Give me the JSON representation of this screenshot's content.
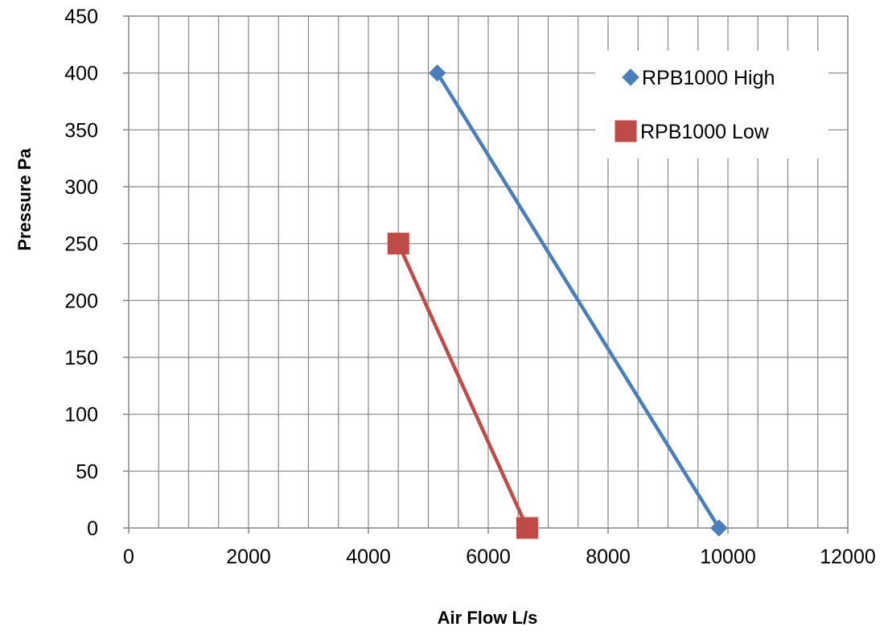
{
  "chart_data": {
    "type": "scatter",
    "title": "",
    "xlabel": "Air Flow L/s",
    "ylabel": "Pressure Pa",
    "xlim": [
      0,
      12000
    ],
    "ylim": [
      0,
      450
    ],
    "x_ticks": [
      "0",
      "2000",
      "4000",
      "6000",
      "8000",
      "10000",
      "12000"
    ],
    "y_ticks": [
      "0",
      "50",
      "100",
      "150",
      "200",
      "250",
      "300",
      "350",
      "400",
      "450"
    ],
    "grid": true,
    "legend_position": "top-right",
    "series": [
      {
        "name": "RPB1000 High",
        "color": "#4a7ebb",
        "marker": "diamond",
        "points": [
          {
            "x": 5150,
            "y": 400
          },
          {
            "x": 9850,
            "y": 0
          }
        ]
      },
      {
        "name": "RPB1000 Low",
        "color": "#be4b48",
        "marker": "square",
        "points": [
          {
            "x": 4500,
            "y": 250
          },
          {
            "x": 6650,
            "y": 0
          }
        ]
      }
    ]
  }
}
